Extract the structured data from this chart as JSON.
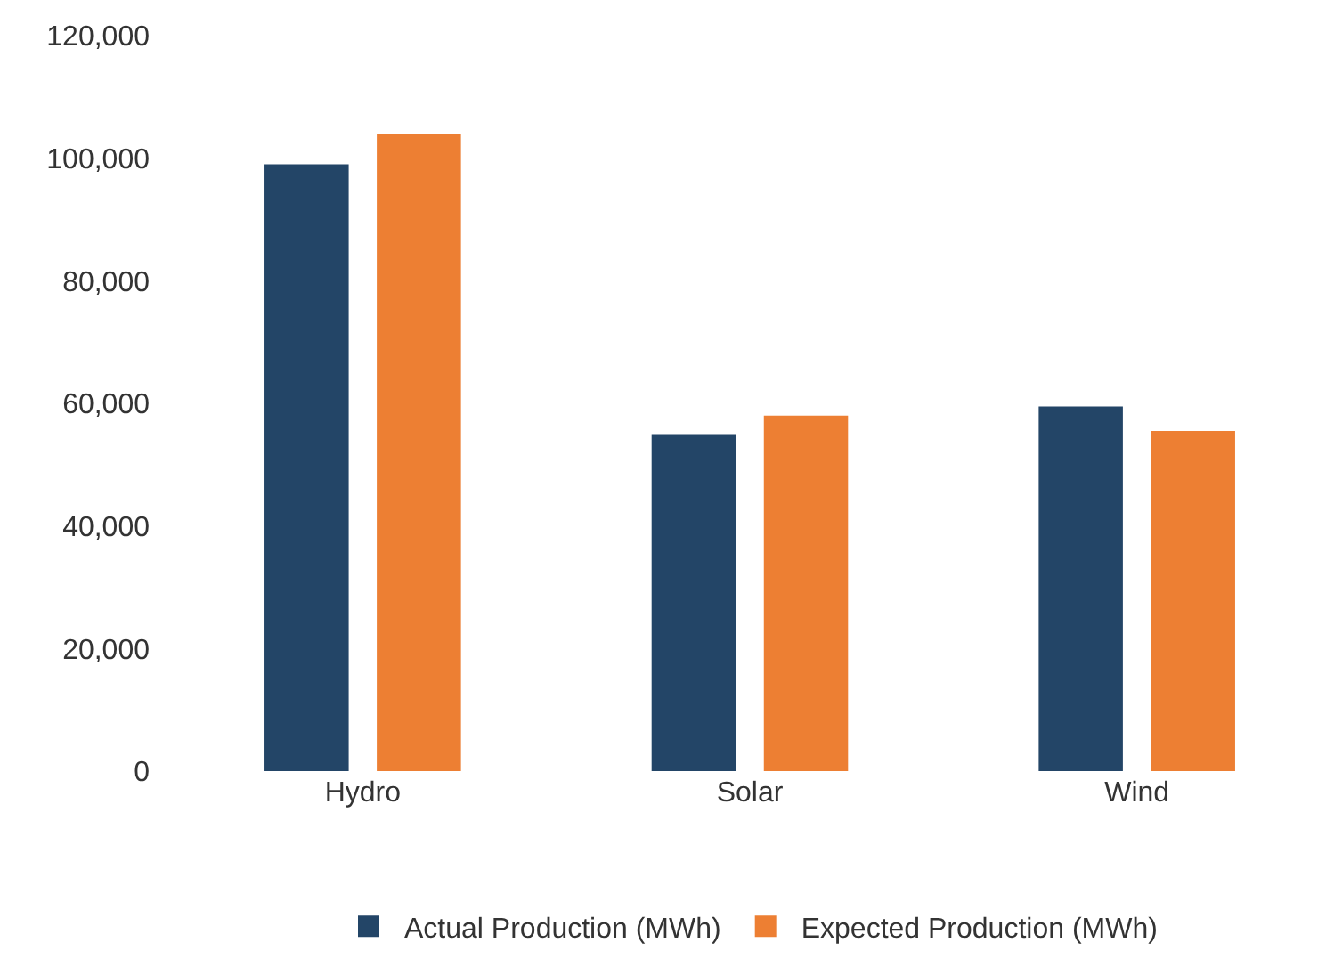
{
  "chart_data": {
    "type": "bar",
    "categories": [
      "Hydro",
      "Solar",
      "Wind"
    ],
    "series": [
      {
        "name": "Actual Production (MWh)",
        "color": "#234567",
        "values": [
          99000,
          55000,
          59500
        ]
      },
      {
        "name": "Expected Production (MWh)",
        "color": "#ed7f33",
        "values": [
          104000,
          58000,
          55500
        ]
      }
    ],
    "ylim": [
      0,
      120000
    ],
    "yticks": [
      {
        "value": 0,
        "label": "0"
      },
      {
        "value": 20000,
        "label": "20,000"
      },
      {
        "value": 40000,
        "label": "40,000"
      },
      {
        "value": 60000,
        "label": "60,000"
      },
      {
        "value": 80000,
        "label": "80,000"
      },
      {
        "value": 100000,
        "label": "100,000"
      },
      {
        "value": 120000,
        "label": "120,000"
      }
    ],
    "grid": false,
    "legend": "bottom"
  }
}
